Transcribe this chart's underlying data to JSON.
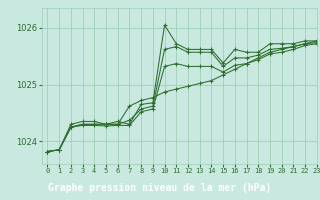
{
  "title": "Graphe pression niveau de la mer (hPa)",
  "background_color": "#c8e8e0",
  "label_bar_color": "#2d6e2d",
  "grid_color": "#9ecfb8",
  "line_color": "#2d6e2d",
  "xlim": [
    -0.5,
    23
  ],
  "ylim": [
    1023.6,
    1026.35
  ],
  "yticks": [
    1024,
    1025,
    1026
  ],
  "xticks": [
    0,
    1,
    2,
    3,
    4,
    5,
    6,
    7,
    8,
    9,
    10,
    11,
    12,
    13,
    14,
    15,
    16,
    17,
    18,
    19,
    20,
    21,
    22,
    23
  ],
  "series": [
    [
      1023.82,
      1023.85,
      1024.3,
      1024.35,
      1024.35,
      1024.3,
      1024.35,
      1024.3,
      1024.65,
      1024.68,
      1026.05,
      1025.72,
      1025.62,
      1025.62,
      1025.62,
      1025.38,
      1025.62,
      1025.57,
      1025.57,
      1025.72,
      1025.72,
      1025.72,
      1025.77,
      1025.77
    ],
    [
      1023.82,
      1023.85,
      1024.25,
      1024.3,
      1024.3,
      1024.3,
      1024.3,
      1024.62,
      1024.72,
      1024.77,
      1024.87,
      1024.92,
      1024.97,
      1025.02,
      1025.07,
      1025.17,
      1025.27,
      1025.37,
      1025.47,
      1025.57,
      1025.62,
      1025.67,
      1025.72,
      1025.77
    ],
    [
      1023.82,
      1023.85,
      1024.25,
      1024.3,
      1024.3,
      1024.3,
      1024.3,
      1024.37,
      1024.57,
      1024.62,
      1025.62,
      1025.67,
      1025.57,
      1025.57,
      1025.57,
      1025.32,
      1025.47,
      1025.47,
      1025.52,
      1025.62,
      1025.64,
      1025.67,
      1025.72,
      1025.74
    ],
    [
      1023.82,
      1023.85,
      1024.25,
      1024.28,
      1024.28,
      1024.27,
      1024.28,
      1024.28,
      1024.52,
      1024.57,
      1025.32,
      1025.37,
      1025.32,
      1025.32,
      1025.32,
      1025.22,
      1025.34,
      1025.37,
      1025.44,
      1025.54,
      1025.57,
      1025.62,
      1025.69,
      1025.72
    ]
  ]
}
